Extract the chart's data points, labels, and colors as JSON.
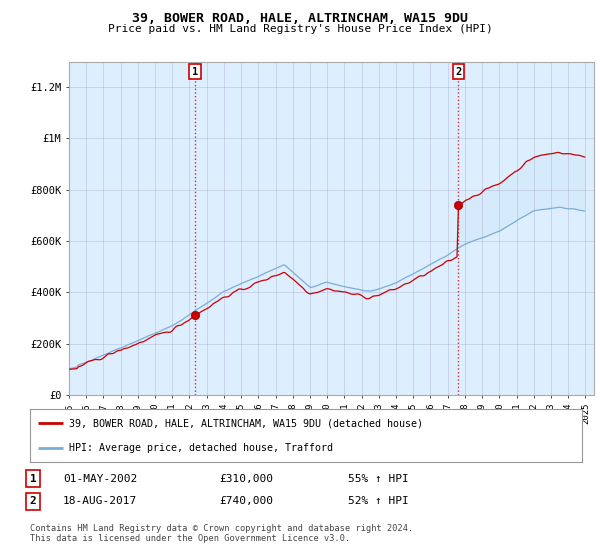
{
  "title": "39, BOWER ROAD, HALE, ALTRINCHAM, WA15 9DU",
  "subtitle": "Price paid vs. HM Land Registry's House Price Index (HPI)",
  "xlim": [
    1995.0,
    2025.5
  ],
  "ylim": [
    0,
    1300000
  ],
  "yticks": [
    0,
    200000,
    400000,
    600000,
    800000,
    1000000,
    1200000
  ],
  "ytick_labels": [
    "£0",
    "£200K",
    "£400K",
    "£600K",
    "£800K",
    "£1M",
    "£1.2M"
  ],
  "xticks": [
    1995,
    1996,
    1997,
    1998,
    1999,
    2000,
    2001,
    2002,
    2003,
    2004,
    2005,
    2006,
    2007,
    2008,
    2009,
    2010,
    2011,
    2012,
    2013,
    2014,
    2015,
    2016,
    2017,
    2018,
    2019,
    2020,
    2021,
    2022,
    2023,
    2024,
    2025
  ],
  "sale1_x": 2002.33,
  "sale1_y": 310000,
  "sale2_x": 2017.62,
  "sale2_y": 740000,
  "legend_line1": "39, BOWER ROAD, HALE, ALTRINCHAM, WA15 9DU (detached house)",
  "legend_line2": "HPI: Average price, detached house, Trafford",
  "table_row1": [
    "1",
    "01-MAY-2002",
    "£310,000",
    "55% ↑ HPI"
  ],
  "table_row2": [
    "2",
    "18-AUG-2017",
    "£740,000",
    "52% ↑ HPI"
  ],
  "footer": "Contains HM Land Registry data © Crown copyright and database right 2024.\nThis data is licensed under the Open Government Licence v3.0.",
  "line_color_red": "#cc0000",
  "line_color_blue": "#7aaed4",
  "chart_bg_color": "#ddeeff",
  "background_color": "#ffffff",
  "grid_color": "#aaaacc"
}
